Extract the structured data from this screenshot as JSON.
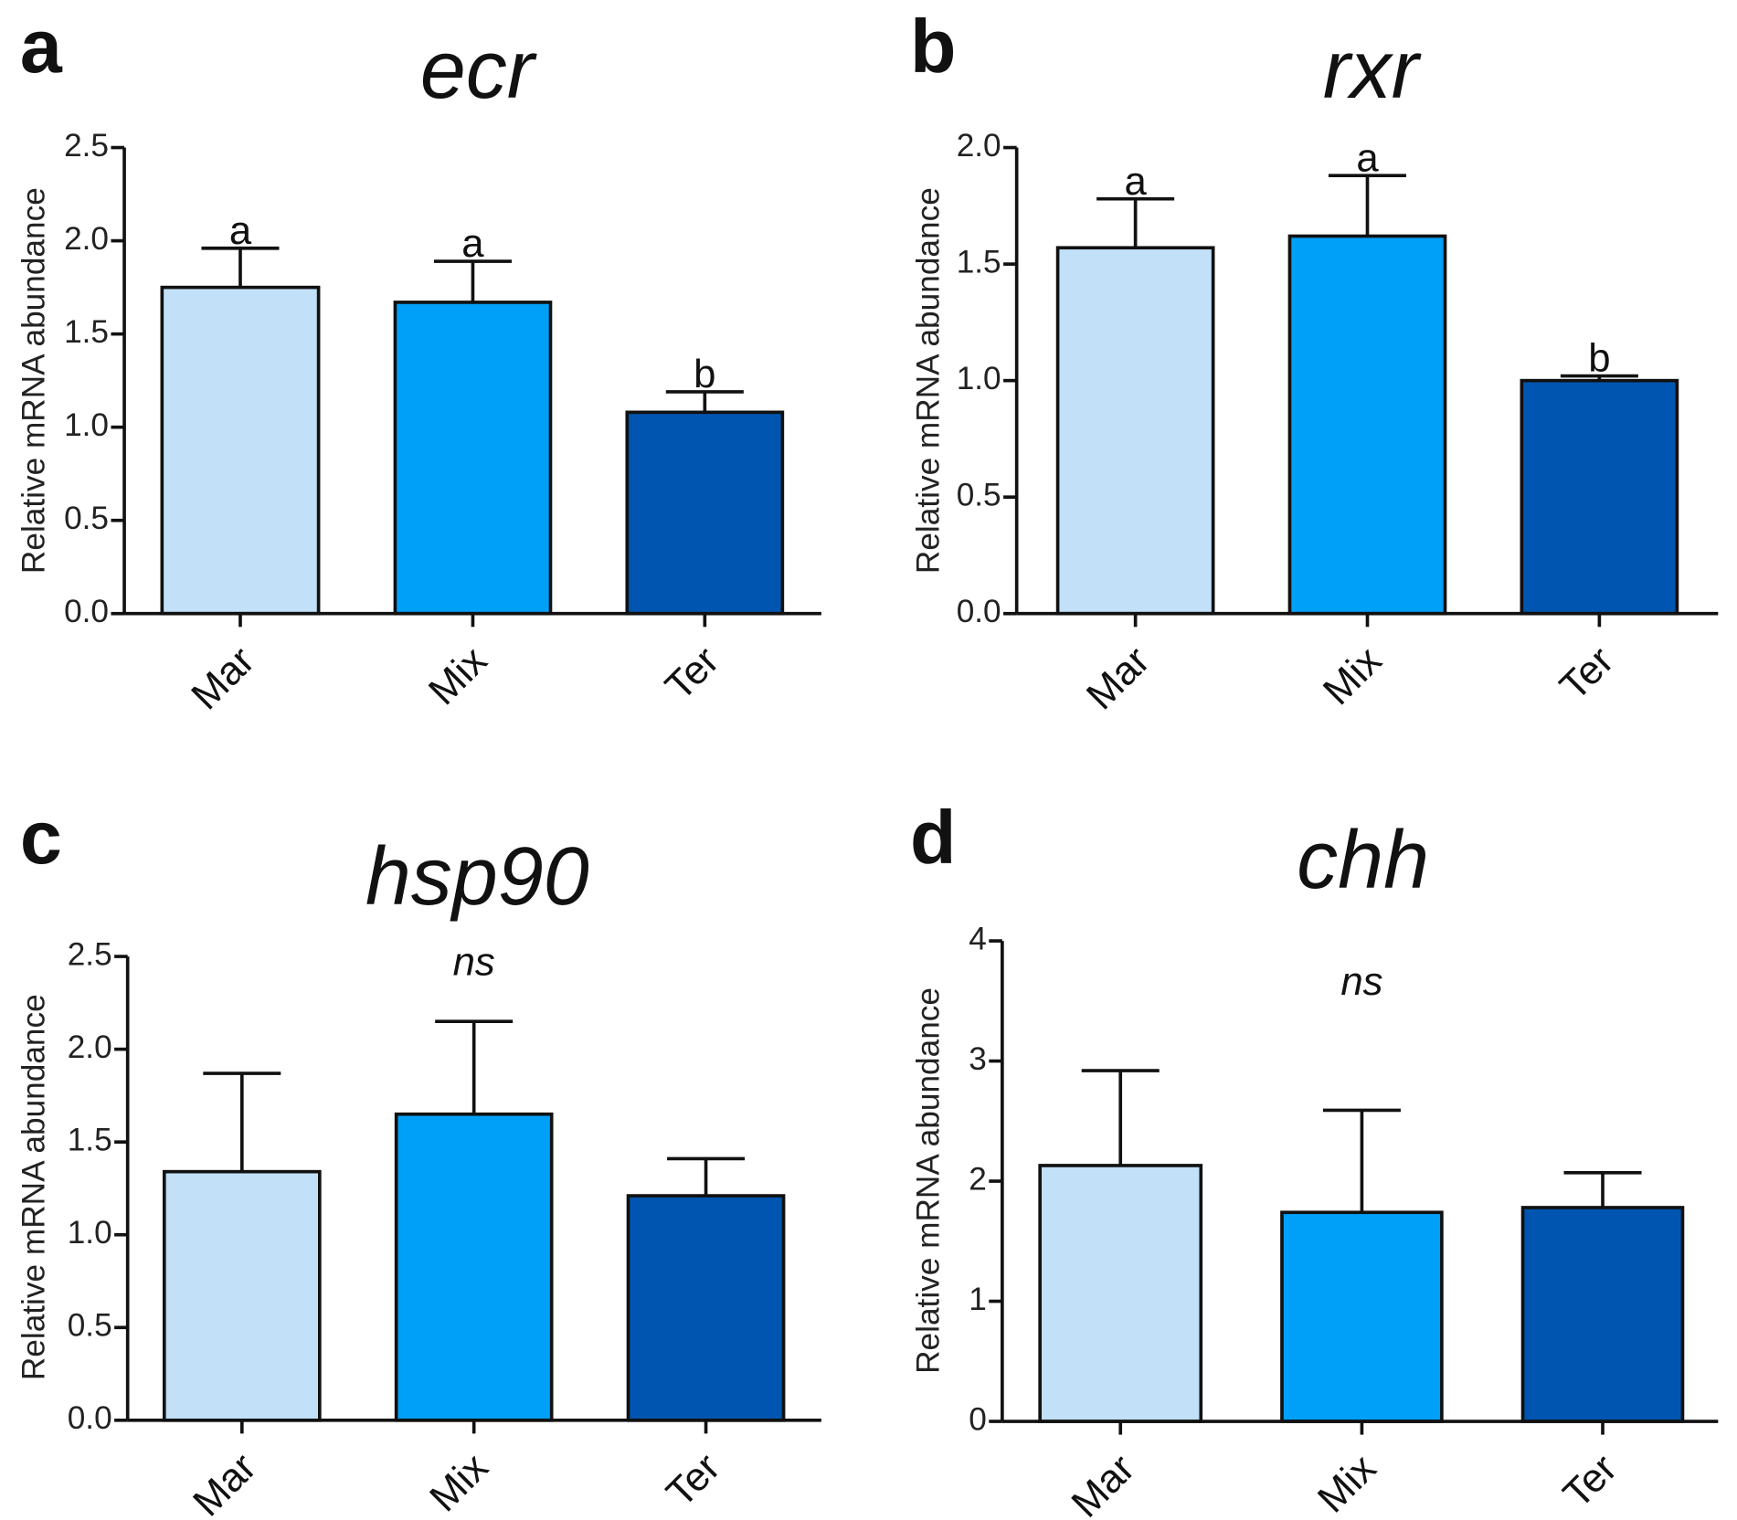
{
  "chart_data": [
    {
      "panel": "a",
      "type": "bar",
      "title": "ecr",
      "ylabel": "Relative mRNA abundance",
      "xlabel": "",
      "categories": [
        "Mar",
        "Mix",
        "Ter"
      ],
      "values": [
        1.75,
        1.67,
        1.08
      ],
      "errors": [
        0.21,
        0.22,
        0.11
      ],
      "significance": [
        "a",
        "a",
        "b"
      ],
      "ylim": [
        0,
        2.5
      ],
      "yticks": [
        0.0,
        0.5,
        1.0,
        1.5,
        2.0,
        2.5
      ],
      "ytick_labels": [
        "0.0",
        "0.5",
        "1.0",
        "1.5",
        "2.0",
        "2.5"
      ],
      "colors": [
        "#c2e0f8",
        "#00a0f8",
        "#0055b0"
      ]
    },
    {
      "panel": "b",
      "type": "bar",
      "title": "rxr",
      "ylabel": "Relative mRNA abundance",
      "xlabel": "",
      "categories": [
        "Mar",
        "Mix",
        "Ter"
      ],
      "values": [
        1.57,
        1.62,
        1.0
      ],
      "errors": [
        0.21,
        0.26,
        0.02
      ],
      "significance": [
        "a",
        "a",
        "b"
      ],
      "ylim": [
        0,
        2.0
      ],
      "yticks": [
        0.0,
        0.5,
        1.0,
        1.5,
        2.0
      ],
      "ytick_labels": [
        "0.0",
        "0.5",
        "1.0",
        "1.5",
        "2.0"
      ],
      "colors": [
        "#c2e0f8",
        "#00a0f8",
        "#0055b0"
      ]
    },
    {
      "panel": "c",
      "type": "bar",
      "title": "hsp90",
      "ylabel": "Relative mRNA abundance",
      "xlabel": "",
      "categories": [
        "Mar",
        "Mix",
        "Ter"
      ],
      "values": [
        1.34,
        1.65,
        1.21
      ],
      "errors": [
        0.53,
        0.5,
        0.2
      ],
      "significance": [],
      "annotation": "ns",
      "annotation_y": 2.4,
      "ylim": [
        0,
        2.5
      ],
      "yticks": [
        0.0,
        0.5,
        1.0,
        1.5,
        2.0,
        2.5
      ],
      "ytick_labels": [
        "0.0",
        "0.5",
        "1.0",
        "1.5",
        "2.0",
        "2.5"
      ],
      "colors": [
        "#c2e0f8",
        "#00a0f8",
        "#0055b0"
      ]
    },
    {
      "panel": "d",
      "type": "bar",
      "title": "chh",
      "ylabel": "Relative mRNA abundance",
      "xlabel": "",
      "categories": [
        "Mar",
        "Mix",
        "Ter"
      ],
      "values": [
        2.13,
        1.74,
        1.78
      ],
      "errors": [
        0.79,
        0.85,
        0.29
      ],
      "significance": [],
      "annotation": "ns",
      "annotation_y": 3.55,
      "ylim": [
        0,
        4
      ],
      "yticks": [
        0,
        1,
        2,
        3,
        4
      ],
      "ytick_labels": [
        "0",
        "1",
        "2",
        "3",
        "4"
      ],
      "colors": [
        "#c2e0f8",
        "#00a0f8",
        "#0055b0"
      ]
    }
  ]
}
